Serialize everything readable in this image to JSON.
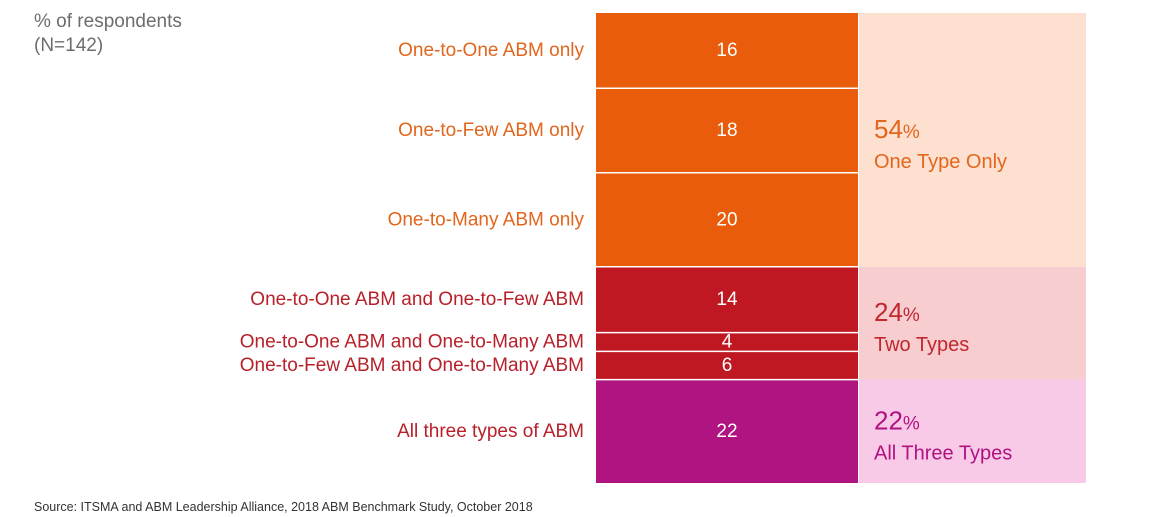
{
  "unit_note": [
    "% of respondents",
    "(N=142)"
  ],
  "source": "Source: ITSMA and ABM Leadership Alliance, 2018 ABM Benchmark Study, October 2018",
  "colors": {
    "one_type": "#e95c0c",
    "two_types": "#bf1823",
    "three_types": "#b01480",
    "one_type_bg": "#fde0cf",
    "two_types_bg": "#f8cdd0",
    "three_types_bg": "#f9c9e8",
    "label_one_type": "#e2661d",
    "label_two_types": "#b8202a",
    "group_text_one": "#e2661d",
    "group_text_two": "#c0272f",
    "group_text_three": "#b0127f",
    "segment_text": "#ffffff"
  },
  "chart_data": {
    "type": "bar",
    "stacked": true,
    "orientation": "vertical",
    "categories": [
      "One-to-One ABM only",
      "One-to-Few ABM only",
      "One-to-Many ABM only",
      "One-to-One ABM and One-to-Few ABM",
      "One-to-One ABM and One-to-Many ABM",
      "One-to-Few ABM and One-to-Many ABM",
      "All three types of ABM"
    ],
    "values": [
      16,
      18,
      20,
      14,
      4,
      6,
      22
    ],
    "groups": [
      {
        "percent": "54",
        "unit": "%",
        "label": "One Type Only",
        "members": [
          0,
          1,
          2
        ]
      },
      {
        "percent": "24",
        "unit": "%",
        "label": "Two Types",
        "members": [
          3,
          4,
          5
        ]
      },
      {
        "percent": "22",
        "unit": "%",
        "label": "All Three Types",
        "members": [
          6
        ]
      }
    ],
    "ylabel": "% of respondents",
    "legend": "none",
    "grid": false
  }
}
